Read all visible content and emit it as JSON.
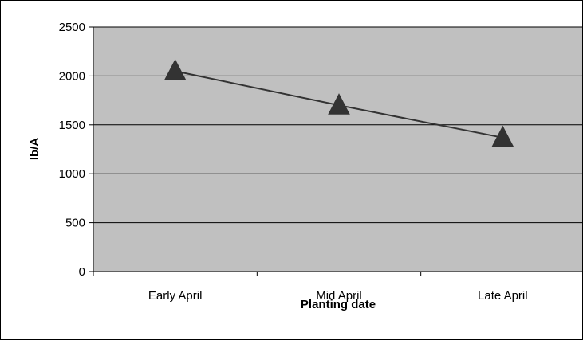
{
  "chart_data": {
    "type": "line",
    "title": "",
    "xlabel": "Planting date",
    "ylabel": "lb/A",
    "categories": [
      "Early April",
      "Mid April",
      "Late April"
    ],
    "series": [
      {
        "values": [
          2050,
          1700,
          1370
        ],
        "marker": "triangle",
        "color": "#333333"
      }
    ],
    "ylim": [
      0,
      2500
    ],
    "yticks": [
      "0",
      "500",
      "1000",
      "1500",
      "2000",
      "2500"
    ],
    "grid": true,
    "legend": "none",
    "plot_background": "#c0c0c0"
  }
}
